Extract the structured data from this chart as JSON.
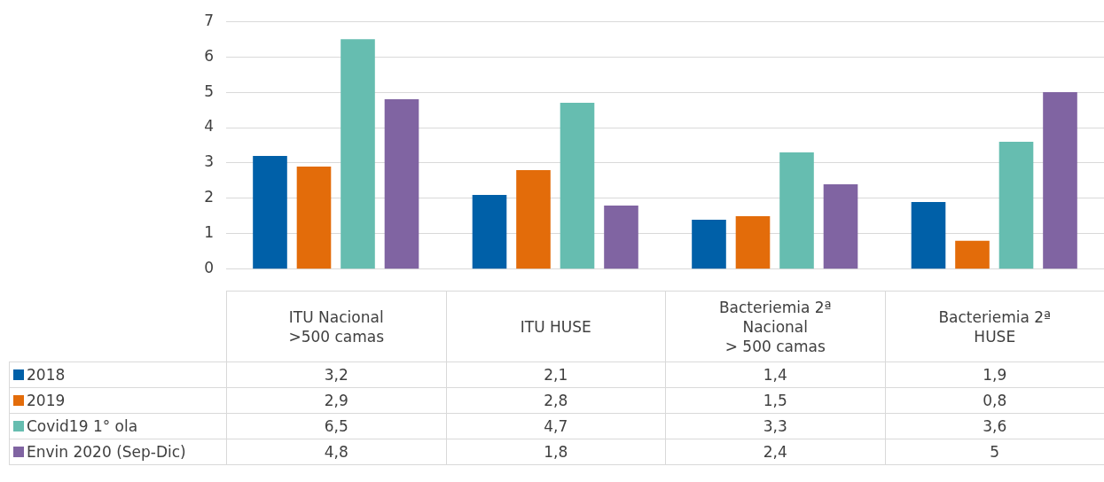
{
  "chart_data": {
    "type": "bar",
    "categories": [
      "ITU Nacional\n>500 camas",
      "ITU HUSE",
      "Bacteriemia 2ª\nNacional\n> 500 camas",
      "Bacteriemia 2ª\nHUSE"
    ],
    "series": [
      {
        "name": "2018",
        "color": "#0060a8",
        "values": [
          3.2,
          2.1,
          1.4,
          1.9
        ],
        "value_labels": [
          "3,2",
          "2,1",
          "1,4",
          "1,9"
        ]
      },
      {
        "name": "2019",
        "color": "#e36c0a",
        "values": [
          2.9,
          2.8,
          1.5,
          0.8
        ],
        "value_labels": [
          "2,9",
          "2,8",
          "1,5",
          "0,8"
        ]
      },
      {
        "name": "Covid19 1° ola",
        "color": "#66bdb0",
        "values": [
          6.5,
          4.7,
          3.3,
          3.6
        ],
        "value_labels": [
          "6,5",
          "4,7",
          "3,3",
          "3,6"
        ]
      },
      {
        "name": "Envin 2020 (Sep-Dic)",
        "color": "#8064a2",
        "values": [
          4.8,
          1.8,
          2.4,
          5
        ],
        "value_labels": [
          "4,8",
          "1,8",
          "2,4",
          "5"
        ]
      }
    ],
    "ylim": [
      0,
      7
    ],
    "yticks": [
      0,
      1,
      2,
      3,
      4,
      5,
      6,
      7
    ],
    "grid": "y",
    "legend": "bottom"
  }
}
